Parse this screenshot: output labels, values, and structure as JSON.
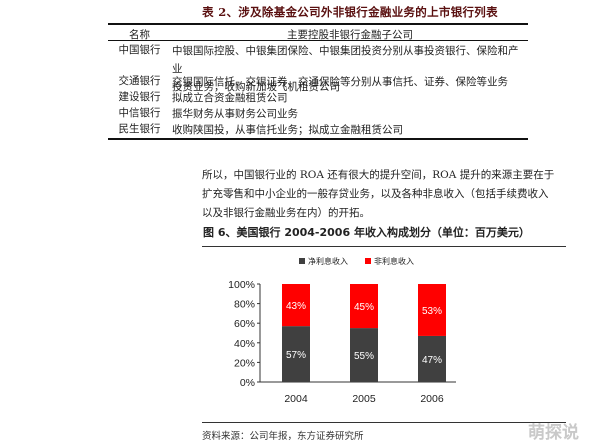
{
  "table2": {
    "title": "表 2、涉及除基金公司外非银行金融业务的上市银行列表",
    "header": {
      "col1": "名称",
      "col2": "主要控股非银行金融子公司"
    },
    "rows": [
      {
        "bank": "中国银行",
        "lines": [
          "中银国际控股、中银集团保险、中银集团投资分别从事投资银行、保险和产业",
          "投资业务，收购新加坡飞机租赁公司"
        ]
      },
      {
        "bank": "交通银行",
        "lines": [
          "交银国际信托、交银证券、交通保险等分别从事信托、证券、保险等业务"
        ]
      },
      {
        "bank": "建设银行",
        "lines": [
          "拟成立合资金融租赁公司"
        ]
      },
      {
        "bank": "中信银行",
        "lines": [
          "振华财务从事财务公司业务"
        ]
      },
      {
        "bank": "民生银行",
        "lines": [
          "收购陕国投，从事信托业务；拟成立金融租赁公司"
        ]
      }
    ]
  },
  "paragraph": {
    "lines": [
      "所以，中国银行业的 ROA 还有很大的提升空间，ROA 提升的来源主要在于",
      "扩充零售和中小企业的一般存贷业务，以及各种非息收入（包括手续费收入",
      "以及非银行金融业务在内）的开拓。"
    ]
  },
  "figure": {
    "title": "图 6、美国银行 2004-2006 年收入构成划分（单位：百万美元）"
  },
  "chart_data": {
    "type": "bar",
    "stacked": true,
    "percent": true,
    "categories": [
      "2004",
      "2005",
      "2006"
    ],
    "series": [
      {
        "name": "净利息收入",
        "values": [
          57,
          55,
          47
        ],
        "labels": [
          "57%",
          "55%",
          "47%"
        ],
        "color": "#404040"
      },
      {
        "name": "非利息收入",
        "values": [
          43,
          45,
          53
        ],
        "labels": [
          "43%",
          "45%",
          "53%"
        ],
        "color": "#ff0000"
      }
    ],
    "yticks": [
      "0%",
      "20%",
      "40%",
      "60%",
      "80%",
      "100%"
    ],
    "ylim": [
      0,
      100
    ],
    "legend": "top-center",
    "grid": false
  },
  "source": "资料来源：公司年报，东方证券研究所",
  "watermark": "萌探说"
}
